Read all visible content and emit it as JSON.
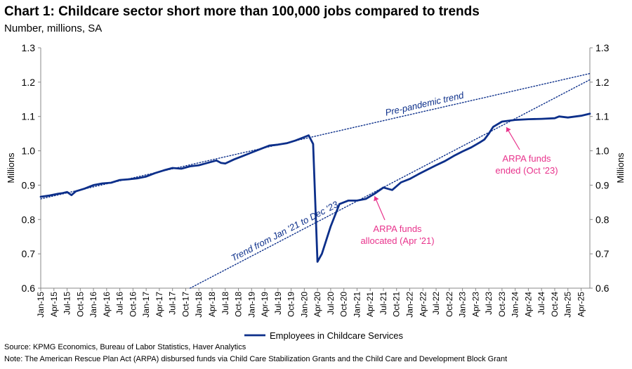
{
  "header": {
    "title": "Chart 1: Childcare sector short more than 100,000 jobs compared to trends",
    "subtitle": "Number, millions, SA"
  },
  "footer": {
    "source": "Source: KPMG Economics, Bureau of Labor Statistics, Haver Analytics",
    "note": "Note: The American Rescue Plan Act (ARPA) disbursed funds via Child Care Stabilization Grants and the Child Care and Development Block Grant"
  },
  "chart_data": {
    "type": "line",
    "ylabel_left": "Millions",
    "ylabel_right": "Millions",
    "ylim": [
      0.6,
      1.3
    ],
    "yticks": [
      "0.6",
      "0.7",
      "0.8",
      "0.9",
      "1.0",
      "1.1",
      "1.2",
      "1.3"
    ],
    "xlim": [
      "2015-01",
      "2025-06"
    ],
    "xticks": [
      "Jan-15",
      "Apr-15",
      "Jul-15",
      "Oct-15",
      "Jan-16",
      "Apr-16",
      "Jul-16",
      "Oct-16",
      "Jan-17",
      "Apr-17",
      "Jul-17",
      "Oct-17",
      "Jan-18",
      "Apr-18",
      "Jul-18",
      "Oct-18",
      "Jan-19",
      "Apr-19",
      "Jul-19",
      "Oct-19",
      "Jan-20",
      "Apr-20",
      "Jul-20",
      "Oct-20",
      "Jan-21",
      "Apr-21",
      "Jul-21",
      "Oct-21",
      "Jan-22",
      "Apr-22",
      "Jul-22",
      "Oct-22",
      "Jan-23",
      "Apr-23",
      "Jul-23",
      "Oct-23",
      "Jan-24",
      "Apr-24",
      "Jul-24",
      "Oct-24",
      "Jan-25",
      "Apr-25"
    ],
    "grid": false,
    "legend_position": "bottom",
    "colors": {
      "series": "#0c2f8a",
      "annotation": "#e8338c"
    },
    "series": [
      {
        "name": "Employees in Childcare Services",
        "style": "solid",
        "x": [
          "2015-01",
          "2015-03",
          "2015-05",
          "2015-06",
          "2015-07",
          "2015-08",
          "2015-09",
          "2015-11",
          "2016-01",
          "2016-03",
          "2016-05",
          "2016-07",
          "2016-09",
          "2016-11",
          "2017-01",
          "2017-03",
          "2017-05",
          "2017-07",
          "2017-09",
          "2017-11",
          "2018-01",
          "2018-03",
          "2018-05",
          "2018-06",
          "2018-07",
          "2018-09",
          "2018-11",
          "2019-01",
          "2019-03",
          "2019-05",
          "2019-07",
          "2019-09",
          "2019-11",
          "2020-01",
          "2020-02",
          "2020-03",
          "2020-04",
          "2020-05",
          "2020-07",
          "2020-09",
          "2020-11",
          "2021-01",
          "2021-03",
          "2021-05",
          "2021-06",
          "2021-07",
          "2021-09",
          "2021-11",
          "2022-01",
          "2022-03",
          "2022-05",
          "2022-07",
          "2022-09",
          "2022-11",
          "2023-01",
          "2023-03",
          "2023-05",
          "2023-06",
          "2023-07",
          "2023-08",
          "2023-10",
          "2024-01",
          "2024-04",
          "2024-07",
          "2024-10",
          "2024-11",
          "2025-01",
          "2025-04",
          "2025-06"
        ],
        "values": [
          0.866,
          0.87,
          0.875,
          0.877,
          0.88,
          0.871,
          0.882,
          0.89,
          0.9,
          0.905,
          0.907,
          0.915,
          0.917,
          0.92,
          0.925,
          0.935,
          0.943,
          0.95,
          0.948,
          0.955,
          0.958,
          0.965,
          0.972,
          0.965,
          0.963,
          0.975,
          0.985,
          0.995,
          1.005,
          1.015,
          1.018,
          1.022,
          1.03,
          1.04,
          1.045,
          1.02,
          0.677,
          0.7,
          0.78,
          0.845,
          0.855,
          0.855,
          0.86,
          0.875,
          0.884,
          0.893,
          0.886,
          0.908,
          0.918,
          0.932,
          0.945,
          0.958,
          0.97,
          0.985,
          0.998,
          1.01,
          1.025,
          1.033,
          1.05,
          1.07,
          1.085,
          1.09,
          1.092,
          1.093,
          1.095,
          1.1,
          1.097,
          1.102,
          1.108
        ]
      },
      {
        "name": "Pre-pandemic trend",
        "style": "dotted",
        "x": [
          "2015-01",
          "2025-06"
        ],
        "values": [
          0.86,
          1.225
        ]
      },
      {
        "name": "Trend from Jan '21 to Dec '23",
        "style": "dotted",
        "x": [
          "2017-11",
          "2025-06"
        ],
        "values": [
          0.6,
          1.207
        ]
      }
    ],
    "annotations": [
      {
        "text_lines": [
          "ARPA funds",
          "allocated (Apr '21)"
        ],
        "target": [
          "2021-05",
          0.884
        ]
      },
      {
        "text_lines": [
          "ARPA funds",
          "ended (Oct '23)"
        ],
        "target": [
          "2023-11",
          1.085
        ]
      }
    ]
  }
}
